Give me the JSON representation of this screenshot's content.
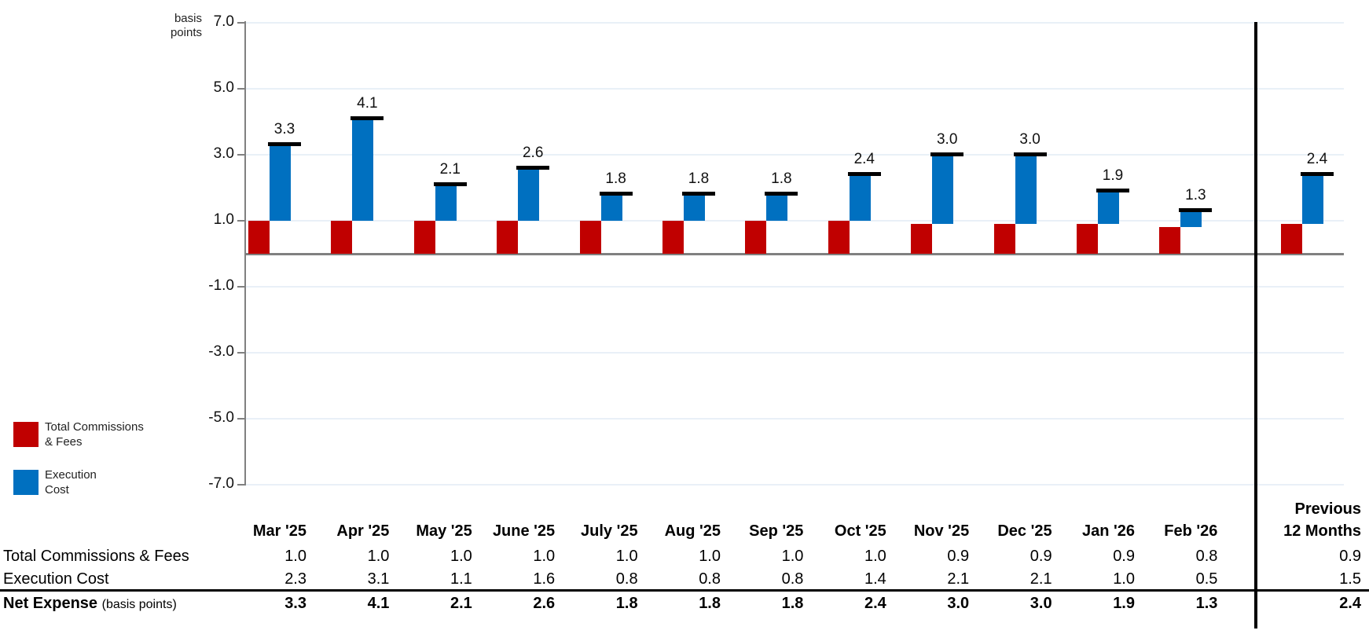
{
  "chart_data": {
    "type": "bar",
    "subtype": "offset-stacked-waterfall",
    "unit_label_lines": [
      "basis",
      "points"
    ],
    "categories": [
      "Mar '25",
      "Apr '25",
      "May '25",
      "June '25",
      "July '25",
      "Aug '25",
      "Sep '25",
      "Oct '25",
      "Nov '25",
      "Dec '25",
      "Jan '26",
      "Feb '26"
    ],
    "summary_label_lines": [
      "Previous",
      "12 Months"
    ],
    "series": [
      {
        "name": "Total Commissions & Fees",
        "color": "#C00000",
        "values": [
          1.0,
          1.0,
          1.0,
          1.0,
          1.0,
          1.0,
          1.0,
          1.0,
          0.9,
          0.9,
          0.9,
          0.8
        ],
        "summary_value": 0.9
      },
      {
        "name": "Execution Cost",
        "color": "#0070C0",
        "values": [
          2.3,
          3.1,
          1.1,
          1.6,
          0.8,
          0.8,
          0.8,
          1.4,
          2.1,
          2.1,
          1.0,
          0.5
        ],
        "summary_value": 1.5
      }
    ],
    "totals": {
      "name": "Net Expense",
      "suffix": "(basis points)",
      "values": [
        3.3,
        4.1,
        2.1,
        2.6,
        1.8,
        1.8,
        1.8,
        2.4,
        3.0,
        3.0,
        1.9,
        1.3
      ],
      "summary_value": 2.4
    },
    "y_ticks": [
      7.0,
      5.0,
      3.0,
      1.0,
      -1.0,
      -3.0,
      -5.0,
      -7.0
    ],
    "ylim": [
      -7.0,
      7.0
    ],
    "grid": true,
    "legend_position": "left-bottom"
  },
  "legend": {
    "items": [
      {
        "line1": "Total Commissions",
        "line2": "& Fees",
        "color": "#C00000"
      },
      {
        "line1": "Execution",
        "line2": "Cost",
        "color": "#0070C0"
      }
    ]
  },
  "table": {
    "row_labels": {
      "commissions": "Total Commissions & Fees",
      "execution": "Execution Cost",
      "net_bold": "Net Expense",
      "net_suffix": "(basis points)"
    }
  },
  "colors": {
    "red": "#C00000",
    "blue": "#0070C0",
    "axis": "#808080",
    "grid": "#E9F0F7",
    "cap": "#000000",
    "separator": "#000000",
    "table_line": "#000000"
  }
}
